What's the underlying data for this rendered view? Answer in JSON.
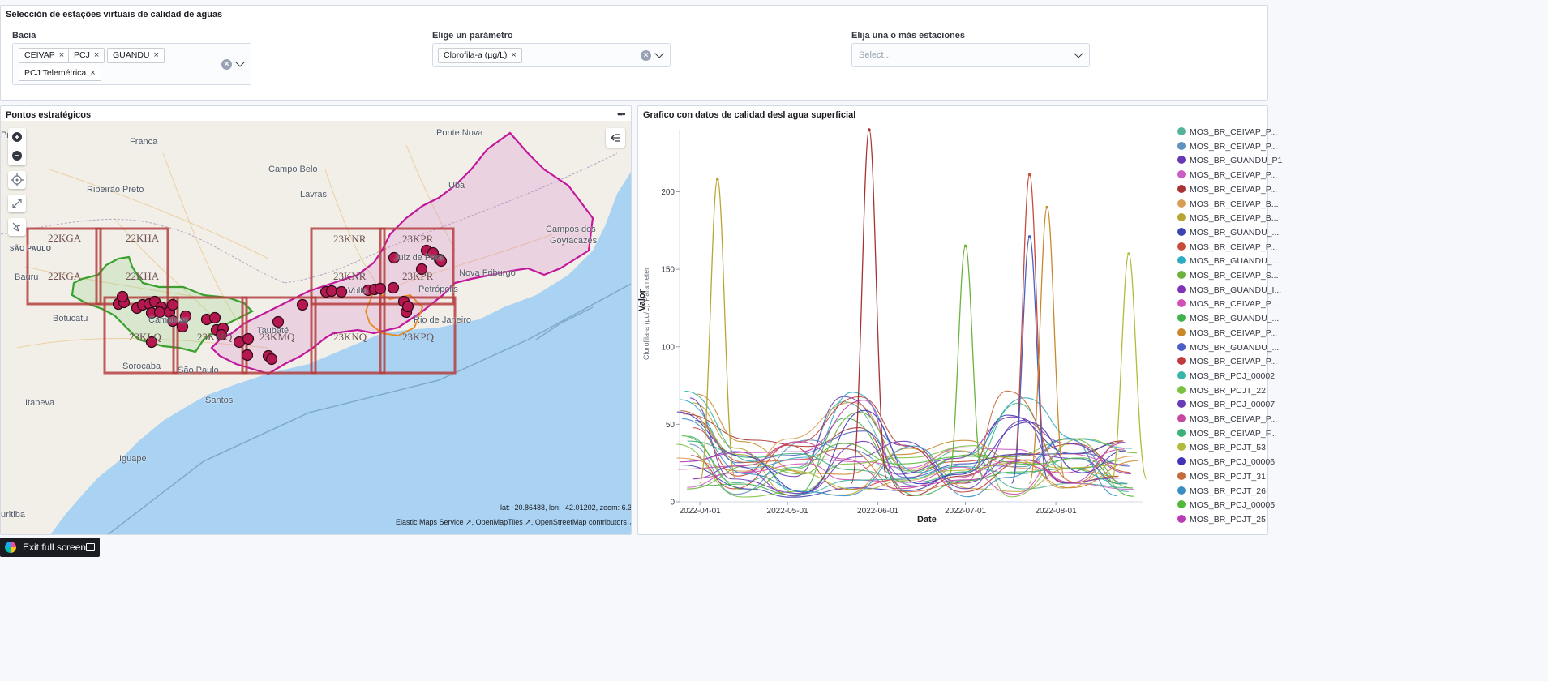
{
  "filters": {
    "title": "Selección de estações virtuais de calidad de aguas",
    "bacia": {
      "label": "Bacia",
      "chips": [
        "CEIVAP",
        "PCJ",
        "GUANDU",
        "PCJ Telemétrica"
      ]
    },
    "parametro": {
      "label": "Elige un parámetro",
      "chips": [
        "Clorofila-a (µg/L)"
      ]
    },
    "estaciones": {
      "label": "Elija una o más estaciones",
      "placeholder": "Select..."
    }
  },
  "map": {
    "title": "Pontos estratégicos",
    "options_icon": "ellipsis-icon",
    "controls": [
      "zoom-in-icon",
      "zoom-out-icon",
      "locate-icon",
      "fit-bounds-icon",
      "draw-tools-icon"
    ],
    "layers_icon": "layers-collapse-icon",
    "places": [
      "Franca",
      "Ponte Nova",
      "Campo Belo",
      "Ribeirão Preto",
      "Lavras",
      "Ubá",
      "Juiz de Fora",
      "Campos dos",
      "Goytacazes",
      "SÃO PAULO",
      "Bauru",
      "Nova Friburgo",
      "Petrópolis",
      "Volta",
      "Botucatu",
      "Campinas",
      "Taubaté",
      "Rio de Janeiro",
      "Sorocaba",
      "São Paulo",
      "Santos",
      "Itapeva",
      "Iguape",
      "Preto",
      "uritiba"
    ],
    "grid_cells": [
      "22KGA",
      "22KHA",
      "22KGA",
      "22KHA",
      "23KNR",
      "23KPR",
      "23KNR",
      "23KPR",
      "23KMQ",
      "23KMQ",
      "23KNQ",
      "23KPQ",
      "23KLQ",
      "23KKQ"
    ],
    "coords": "lat: -20.86488, lon: -42.01202, zoom: 6.37",
    "attribution": [
      "Elastic Maps Service",
      "OpenMapTiles",
      "OpenStreetMap contributors"
    ],
    "colors": {
      "water": "#aad3f3",
      "land": "#f2efe9",
      "points": "#b5174f",
      "region_pink": "#c2189c",
      "region_green": "#3aa12e",
      "grid": "#b54040"
    }
  },
  "chart": {
    "title": "Grafico con datos de calidad desl agua superficial",
    "chart_data": {
      "type": "line",
      "xlabel": "Date",
      "ylabel": "Valor",
      "ylabel_secondary": "Clorofila-a (µg/L): Parameter",
      "ylim": [
        0,
        240
      ],
      "yticks": [
        0,
        50,
        100,
        150,
        200
      ],
      "xticks": [
        "2022-04-01",
        "2022-05-01",
        "2022-06-01",
        "2022-07-01",
        "2022-08-01"
      ],
      "series": [
        {
          "name": "MOS_BR_CEIVAP_P...",
          "color": "#54b399"
        },
        {
          "name": "MOS_BR_CEIVAP_P...",
          "color": "#6092c0"
        },
        {
          "name": "MOS_BR_GUANDU_P1",
          "color": "#6739b5"
        },
        {
          "name": "MOS_BR_CEIVAP_P...",
          "color": "#ca5dc6"
        },
        {
          "name": "MOS_BR_CEIVAP_P...",
          "color": "#a73232"
        },
        {
          "name": "MOS_BR_CEIVAP_B...",
          "color": "#d69f55"
        },
        {
          "name": "MOS_BR_CEIVAP_B...",
          "color": "#b9a533"
        },
        {
          "name": "MOS_BR_GUANDU_...",
          "color": "#3c43b1"
        },
        {
          "name": "MOS_BR_CEIVAP_P...",
          "color": "#c84a3a"
        },
        {
          "name": "MOS_BR_GUANDU_...",
          "color": "#2eaac3"
        },
        {
          "name": "MOS_BR_CEIVAP_S...",
          "color": "#6bb33a"
        },
        {
          "name": "MOS_BR_GUANDU_I...",
          "color": "#7e33b8"
        },
        {
          "name": "MOS_BR_CEIVAP_P...",
          "color": "#d14fb7"
        },
        {
          "name": "MOS_BR_GUANDU_...",
          "color": "#3fb14d"
        },
        {
          "name": "MOS_BR_CEIVAP_P...",
          "color": "#c9892b"
        },
        {
          "name": "MOS_BR_GUANDU_...",
          "color": "#4b5fc4"
        },
        {
          "name": "MOS_BR_CEIVAP_P...",
          "color": "#c23b3b"
        },
        {
          "name": "MOS_BR_PCJ_00002",
          "color": "#36b5a8"
        },
        {
          "name": "MOS_BR_PCJT_22",
          "color": "#7cc142"
        },
        {
          "name": "MOS_BR_PCJ_00007",
          "color": "#6b3bb5"
        },
        {
          "name": "MOS_BR_CEIVAP_P...",
          "color": "#c6479f"
        },
        {
          "name": "MOS_BR_CEIVAP_F...",
          "color": "#3bb27a"
        },
        {
          "name": "MOS_BR_PCJT_53",
          "color": "#b2bb3a"
        },
        {
          "name": "MOS_BR_PCJ_00006",
          "color": "#4433b8"
        },
        {
          "name": "MOS_BR_PCJT_31",
          "color": "#c46a3b"
        },
        {
          "name": "MOS_BR_PCJT_26",
          "color": "#3a8ec4"
        },
        {
          "name": "MOS_BR_PCJ_00005",
          "color": "#52b83a"
        },
        {
          "name": "MOS_BR_PCJT_25",
          "color": "#b93bb5"
        }
      ],
      "peaks": [
        {
          "x": "2022-04-07",
          "y": 208
        },
        {
          "x": "2022-05-29",
          "y": 240
        },
        {
          "x": "2022-07-23",
          "y": 211
        },
        {
          "x": "2022-07-23",
          "y": 171
        },
        {
          "x": "2022-07-01",
          "y": 165
        },
        {
          "x": "2022-08-26",
          "y": 160
        },
        {
          "x": "2022-07-29",
          "y": 190
        }
      ]
    }
  },
  "exit": {
    "label": "Exit full screen"
  }
}
